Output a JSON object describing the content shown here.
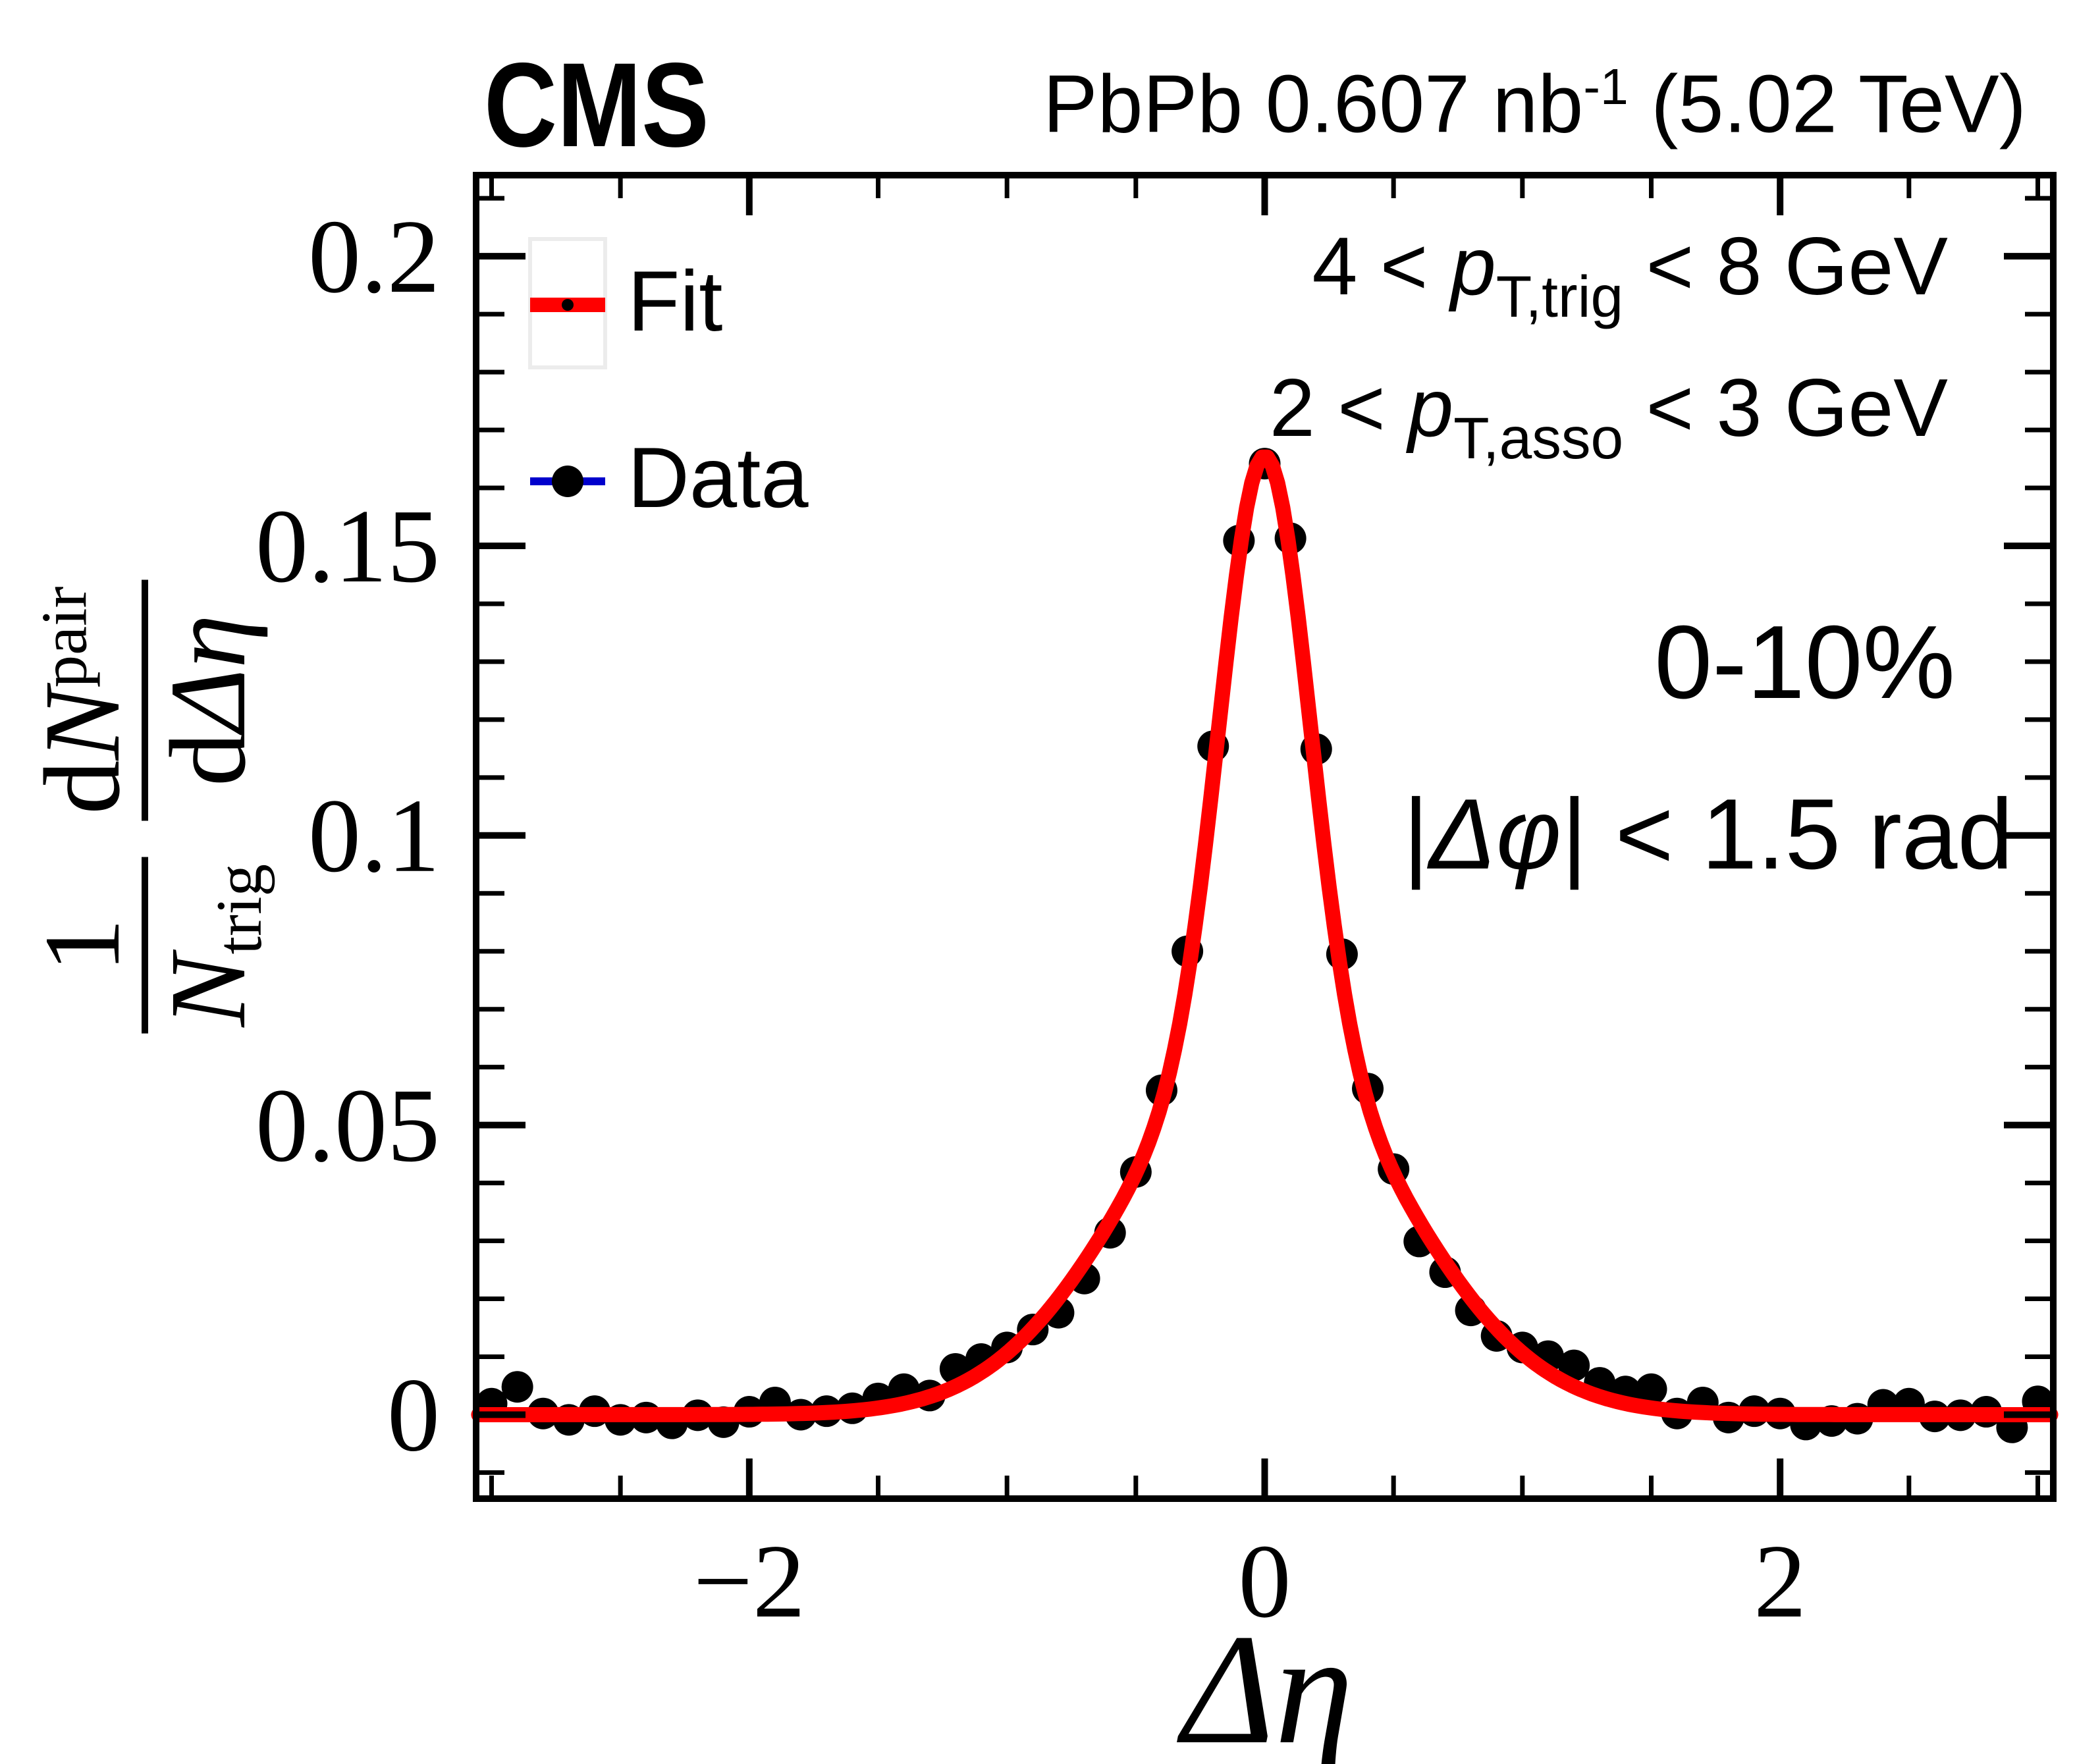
{
  "header": {
    "experiment": "CMS",
    "lumi_prefix": "PbPb 0.607 nb",
    "lumi_sup": "-1",
    "lumi_suffix": " (5.02 TeV)"
  },
  "legend": {
    "fit_label": "Fit",
    "data_label": "Data",
    "fit_color": "#ff0000",
    "marker_color": "#000000",
    "errorbar_color": "#0000cc"
  },
  "annotations": {
    "trig": {
      "pre": "4 < ",
      "var": "p",
      "sub": "T,trig",
      "post": " < 8 GeV"
    },
    "asso": {
      "pre": "2 < ",
      "var": "p",
      "sub": "T,asso",
      "post": " < 3 GeV"
    },
    "centrality": "0-10%",
    "dphi": {
      "pre": "|",
      "var": "Δφ",
      "post": "| < 1.5 rad"
    }
  },
  "y_title": {
    "frac1_num": "1",
    "frac1_den_main": "N",
    "frac1_den_sub": "trig",
    "frac2_num_d": "d",
    "frac2_num_main": "N",
    "frac2_num_sup": "pair",
    "frac2_den_d": "d",
    "frac2_den_main": "Δη"
  },
  "chart_data": {
    "type": "scatter",
    "xlabel": "Δη",
    "ylabel": "1/N_trig dN^pair/dΔη",
    "xlim": [
      -3.06,
      3.06
    ],
    "ylim": [
      -0.0145,
      0.214
    ],
    "x_major_ticks": [
      -2,
      0,
      2
    ],
    "x_major_labels": [
      "−2",
      "0",
      "2"
    ],
    "x_minor_ticks": [
      -3,
      -2.5,
      -1.5,
      -1,
      -0.5,
      0.5,
      1,
      1.5,
      2.5,
      3
    ],
    "y_major_ticks": [
      0,
      0.05,
      0.1,
      0.15,
      0.2
    ],
    "y_major_labels": [
      "0",
      "0.05",
      "0.1",
      "0.15",
      "0.2"
    ],
    "y_minor_ticks": [
      -0.01,
      0.01,
      0.02,
      0.03,
      0.04,
      0.06,
      0.07,
      0.08,
      0.09,
      0.11,
      0.12,
      0.13,
      0.14,
      0.16,
      0.17,
      0.18,
      0.19,
      0.21
    ],
    "series": [
      {
        "name": "Data",
        "type": "scatter",
        "marker": "filled-circle",
        "color": "#000000",
        "xerr": 0.05,
        "points": [
          [
            -3.0,
            0.0019
          ],
          [
            -2.9,
            0.0048
          ],
          [
            -2.8,
            0.0002
          ],
          [
            -2.7,
            -0.0009
          ],
          [
            -2.6,
            0.0006
          ],
          [
            -2.5,
            -0.0009
          ],
          [
            -2.4,
            -0.0005
          ],
          [
            -2.3,
            -0.0015
          ],
          [
            -2.2,
            -0.0001
          ],
          [
            -2.1,
            -0.0013
          ],
          [
            -2.0,
            0.0005
          ],
          [
            -1.9,
            0.0021
          ],
          [
            -1.8,
            0.0
          ],
          [
            -1.7,
            0.0006
          ],
          [
            -1.6,
            0.0011
          ],
          [
            -1.5,
            0.0028
          ],
          [
            -1.4,
            0.0044
          ],
          [
            -1.3,
            0.0033
          ],
          [
            -1.2,
            0.0079
          ],
          [
            -1.1,
            0.0096
          ],
          [
            -1.0,
            0.0116
          ],
          [
            -0.9,
            0.0147
          ],
          [
            -0.8,
            0.0176
          ],
          [
            -0.7,
            0.0235
          ],
          [
            -0.6,
            0.0314
          ],
          [
            -0.5,
            0.0419
          ],
          [
            -0.4,
            0.056
          ],
          [
            -0.3,
            0.08
          ],
          [
            -0.2,
            0.1154
          ],
          [
            -0.1,
            0.1509
          ],
          [
            0.0,
            0.1642
          ],
          [
            0.1,
            0.1513
          ],
          [
            0.2,
            0.1149
          ],
          [
            0.3,
            0.0795
          ],
          [
            0.4,
            0.0563
          ],
          [
            0.5,
            0.0424
          ],
          [
            0.6,
            0.0299
          ],
          [
            0.7,
            0.0246
          ],
          [
            0.8,
            0.018
          ],
          [
            0.9,
            0.0136
          ],
          [
            1.0,
            0.0116
          ],
          [
            1.1,
            0.0101
          ],
          [
            1.2,
            0.0085
          ],
          [
            1.3,
            0.0055
          ],
          [
            1.4,
            0.004
          ],
          [
            1.5,
            0.0044
          ],
          [
            1.6,
            0.0002
          ],
          [
            1.7,
            0.0021
          ],
          [
            1.8,
            -0.0005
          ],
          [
            1.9,
            0.0006
          ],
          [
            2.0,
            0.0002
          ],
          [
            2.1,
            -0.0017
          ],
          [
            2.2,
            -0.0011
          ],
          [
            2.3,
            -0.0007
          ],
          [
            2.4,
            0.0017
          ],
          [
            2.5,
            0.0019
          ],
          [
            2.6,
            -0.0003
          ],
          [
            2.7,
            -0.0001
          ],
          [
            2.8,
            0.0005
          ],
          [
            2.9,
            -0.0022
          ],
          [
            3.0,
            0.0023
          ]
        ]
      },
      {
        "name": "Fit",
        "type": "line",
        "color": "#ff0000",
        "model": "double_gaussian",
        "params": {
          "A1": 0.1025,
          "sigma1": 0.17,
          "A2": 0.063,
          "sigma2": 0.53
        },
        "x_range": [
          -3.05,
          3.05
        ]
      }
    ]
  }
}
